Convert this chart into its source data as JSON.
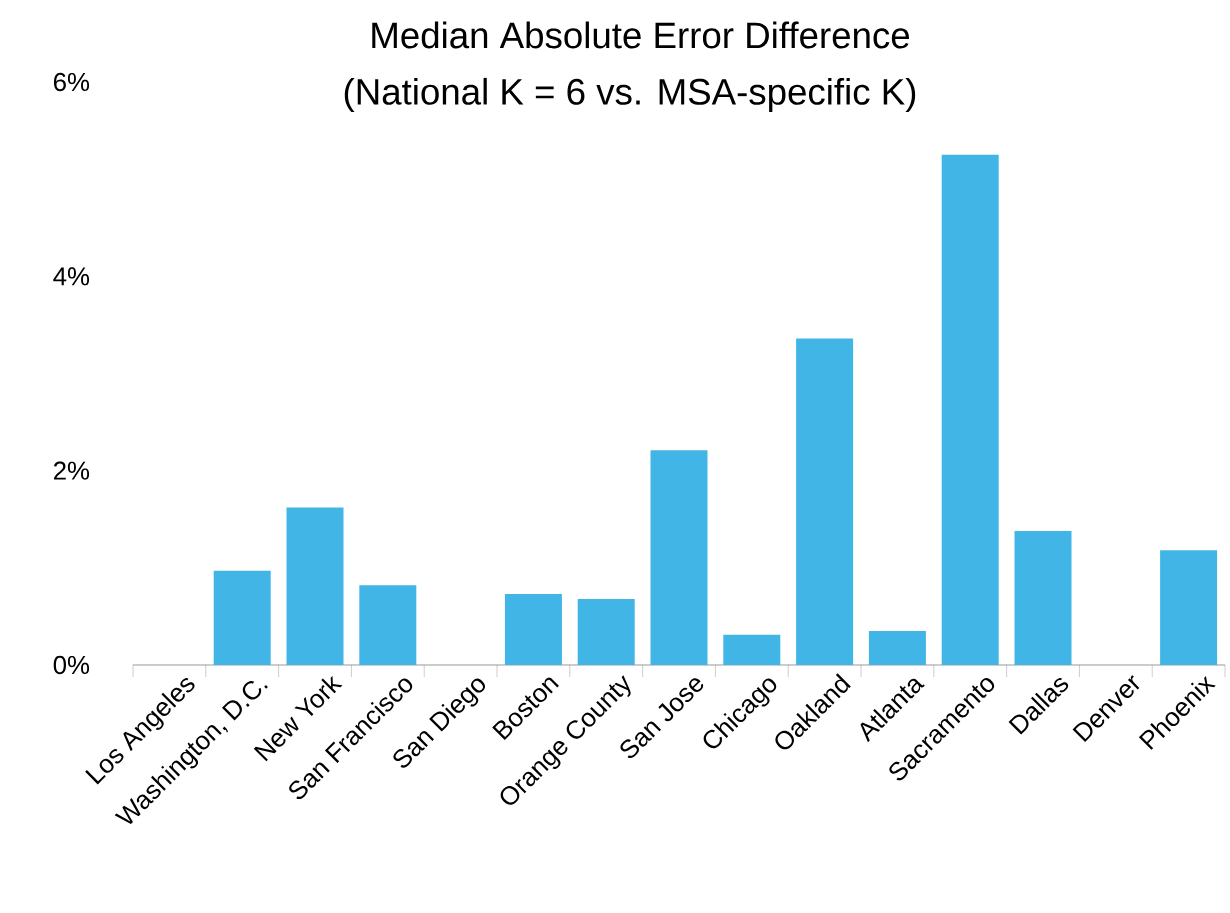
{
  "chart_data": {
    "type": "bar",
    "title": "Median Absolute Error Difference",
    "subtitle": "(National K = 6 vs. MSA-specific K)",
    "categories": [
      "Los Angeles",
      "Washington, D.C.",
      "New York",
      "San Francisco",
      "San Diego",
      "Boston",
      "Orange County",
      "San Jose",
      "Chicago",
      "Oakland",
      "Atlanta",
      "Sacramento",
      "Dallas",
      "Denver",
      "Phoenix"
    ],
    "values": [
      0,
      0.97,
      1.62,
      0.82,
      0,
      0.73,
      0.68,
      2.21,
      0.31,
      3.36,
      0.35,
      5.25,
      1.38,
      0,
      1.18
    ],
    "color": "#41b6e6",
    "ylim": [
      0,
      6
    ],
    "yticks": [
      {
        "value": 0,
        "label": "0%"
      },
      {
        "value": 2,
        "label": "2%"
      },
      {
        "value": 4,
        "label": "4%"
      },
      {
        "value": 6,
        "label": "6%"
      }
    ],
    "grid": false
  }
}
